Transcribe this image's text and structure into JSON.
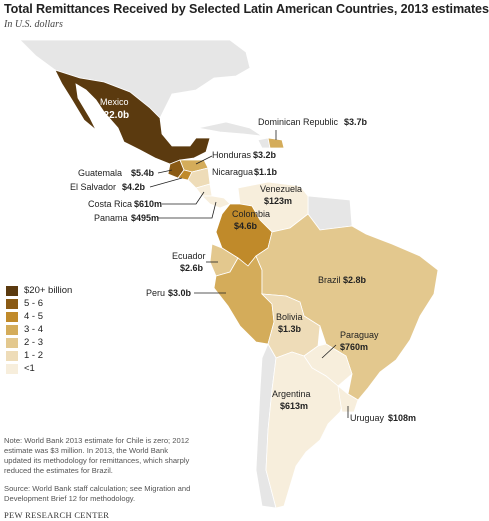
{
  "title": "Total Remittances Received by Selected Latin American Countries, 2013 estimates",
  "subtitle": "In U.S. dollars",
  "legend": [
    {
      "label": "$20+ billion",
      "color": "#5b3a0f"
    },
    {
      "label": "5 - 6",
      "color": "#8a5a14"
    },
    {
      "label": "4 - 5",
      "color": "#c08a2a"
    },
    {
      "label": "3 - 4",
      "color": "#d4ac5a"
    },
    {
      "label": "2 - 3",
      "color": "#e3c88e"
    },
    {
      "label": "1 - 2",
      "color": "#eedcb8"
    },
    {
      "label": "<1",
      "color": "#f7eedc"
    }
  ],
  "colors": {
    "other_land": "#e6e6e6",
    "ocean": "#ffffff",
    "leader": "#222222"
  },
  "countries": {
    "mexico": {
      "name": "Mexico",
      "value": "$22.0b",
      "range": "$20+ billion"
    },
    "dominican_republic": {
      "name": "Dominican Republic",
      "value": "$3.7b",
      "range": "3 - 4"
    },
    "honduras": {
      "name": "Honduras",
      "value": "$3.2b",
      "range": "3 - 4"
    },
    "guatemala": {
      "name": "Guatemala",
      "value": "$5.4b",
      "range": "5 - 6"
    },
    "nicaragua": {
      "name": "Nicaragua",
      "value": "$1.1b",
      "range": "1 - 2"
    },
    "el_salvador": {
      "name": "El Salvador",
      "value": "$4.2b",
      "range": "4 - 5"
    },
    "venezuela": {
      "name": "Venezuela",
      "value": "$123m",
      "range": "<1"
    },
    "costa_rica": {
      "name": "Costa Rica",
      "value": "$610m",
      "range": "<1"
    },
    "panama": {
      "name": "Panama",
      "value": "$495m",
      "range": "<1"
    },
    "colombia": {
      "name": "Colombia",
      "value": "$4.6b",
      "range": "4 - 5"
    },
    "ecuador": {
      "name": "Ecuador",
      "value": "$2.6b",
      "range": "2 - 3"
    },
    "brazil": {
      "name": "Brazil",
      "value": "$2.8b",
      "range": "2 - 3"
    },
    "peru": {
      "name": "Peru",
      "value": "$3.0b",
      "range": "3 - 4"
    },
    "bolivia": {
      "name": "Bolivia",
      "value": "$1.3b",
      "range": "1 - 2"
    },
    "paraguay": {
      "name": "Paraguay",
      "value": "$760m",
      "range": "<1"
    },
    "argentina": {
      "name": "Argentina",
      "value": "$613m",
      "range": "<1"
    },
    "uruguay": {
      "name": "Uruguay",
      "value": "$108m",
      "range": "<1"
    }
  },
  "note": "Note: World Bank 2013 estimate for Chile is zero; 2012 estimate was $3 million. In 2013, the World Bank updated its methodology for remittances, which sharply reduced the estimates for Brazil.",
  "source": "Source: World Bank staff calculation; see Migration and Development Brief 12 for methodology.",
  "credit": "PEW RESEARCH CENTER"
}
